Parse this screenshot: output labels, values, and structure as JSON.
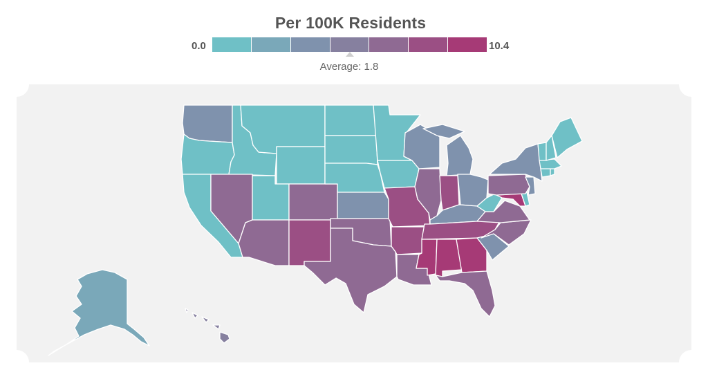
{
  "legend": {
    "title": "Per 100K Residents",
    "min_label": "0.0",
    "max_label": "10.4",
    "average_label": "Average: 1.8",
    "bins": [
      {
        "color": "#6fc0c6"
      },
      {
        "color": "#7aa8b9"
      },
      {
        "color": "#7f92ad"
      },
      {
        "color": "#86809f"
      },
      {
        "color": "#8f6a93"
      },
      {
        "color": "#9b4f84"
      },
      {
        "color": "#a63a76"
      }
    ]
  },
  "colors": {
    "panel_background": "#f2f2f2",
    "state_border": "#ffffff"
  },
  "regions": [
    {
      "name": "washington",
      "color": "#7f92ad"
    },
    {
      "name": "oregon",
      "color": "#6fc0c6"
    },
    {
      "name": "california",
      "color": "#6fc0c6"
    },
    {
      "name": "idaho",
      "color": "#6fc0c6"
    },
    {
      "name": "nevada",
      "color": "#8f6a93"
    },
    {
      "name": "montana",
      "color": "#6fc0c6"
    },
    {
      "name": "wyoming",
      "color": "#6fc0c6"
    },
    {
      "name": "utah",
      "color": "#6fc0c6"
    },
    {
      "name": "arizona",
      "color": "#8f6a93"
    },
    {
      "name": "colorado",
      "color": "#8f6a93"
    },
    {
      "name": "new-mexico",
      "color": "#9b4f84"
    },
    {
      "name": "north-dakota",
      "color": "#6fc0c6"
    },
    {
      "name": "south-dakota",
      "color": "#6fc0c6"
    },
    {
      "name": "nebraska",
      "color": "#6fc0c6"
    },
    {
      "name": "kansas",
      "color": "#7f92ad"
    },
    {
      "name": "oklahoma",
      "color": "#8f6a93"
    },
    {
      "name": "texas",
      "color": "#8f6a93"
    },
    {
      "name": "minnesota",
      "color": "#6fc0c6"
    },
    {
      "name": "iowa",
      "color": "#6fc0c6"
    },
    {
      "name": "missouri",
      "color": "#9b4f84"
    },
    {
      "name": "arkansas",
      "color": "#9b4f84"
    },
    {
      "name": "louisiana",
      "color": "#8f6a93"
    },
    {
      "name": "wisconsin",
      "color": "#7f92ad"
    },
    {
      "name": "illinois",
      "color": "#8f6a93"
    },
    {
      "name": "michigan",
      "color": "#7f92ad"
    },
    {
      "name": "indiana",
      "color": "#9b4f84"
    },
    {
      "name": "ohio",
      "color": "#7f92ad"
    },
    {
      "name": "kentucky",
      "color": "#7f92ad"
    },
    {
      "name": "tennessee",
      "color": "#9b4f84"
    },
    {
      "name": "mississippi",
      "color": "#a63a76"
    },
    {
      "name": "alabama",
      "color": "#a63a76"
    },
    {
      "name": "georgia",
      "color": "#a63a76"
    },
    {
      "name": "florida",
      "color": "#8f6a93"
    },
    {
      "name": "south-carolina",
      "color": "#7f92ad"
    },
    {
      "name": "north-carolina",
      "color": "#8f6a93"
    },
    {
      "name": "virginia",
      "color": "#8f6a93"
    },
    {
      "name": "west-virginia",
      "color": "#6fc0c6"
    },
    {
      "name": "maryland",
      "color": "#a63a76"
    },
    {
      "name": "delaware",
      "color": "#6fc0c6"
    },
    {
      "name": "pennsylvania",
      "color": "#8f6a93"
    },
    {
      "name": "new-jersey",
      "color": "#7f92ad"
    },
    {
      "name": "new-york",
      "color": "#7f92ad"
    },
    {
      "name": "connecticut",
      "color": "#6fc0c6"
    },
    {
      "name": "rhode-island",
      "color": "#6fc0c6"
    },
    {
      "name": "massachusetts",
      "color": "#6fc0c6"
    },
    {
      "name": "vermont",
      "color": "#6fc0c6"
    },
    {
      "name": "new-hampshire",
      "color": "#6fc0c6"
    },
    {
      "name": "maine",
      "color": "#6fc0c6"
    },
    {
      "name": "alaska",
      "color": "#7aa8b9"
    },
    {
      "name": "hawaii",
      "color": "#86809f"
    }
  ]
}
